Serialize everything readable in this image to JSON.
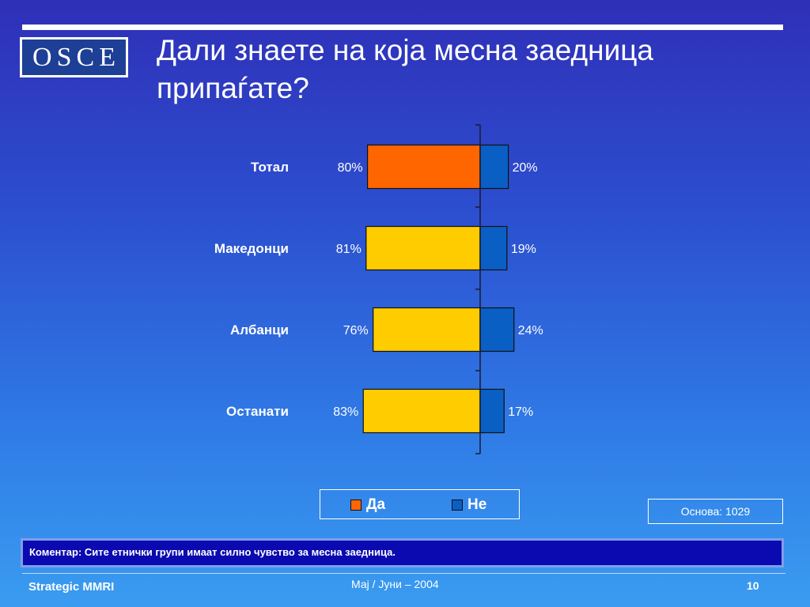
{
  "logo": {
    "letters": [
      "O",
      "S",
      "C",
      "E"
    ]
  },
  "title": "Дали знаете на која месна заедница припаѓате?",
  "chart_data": {
    "type": "bar",
    "orientation": "horizontal",
    "stacked": "diverging",
    "categories": [
      "Тотал",
      "Македонци",
      "Албанци",
      "Останати"
    ],
    "series": [
      {
        "name": "Да",
        "values": [
          80,
          81,
          76,
          83
        ],
        "labels": [
          "80%",
          "81%",
          "76%",
          "83%"
        ],
        "color": "#ffcc00",
        "highlight_color": "#ff6600"
      },
      {
        "name": "Не",
        "values": [
          20,
          19,
          24,
          17
        ],
        "labels": [
          "20%",
          "19%",
          "24%",
          "17%"
        ],
        "color": "#0a5fc4"
      }
    ],
    "highlight_category": "Тотал",
    "legend": "bottom"
  },
  "legend": {
    "items": [
      {
        "label": "Да",
        "color": "#ff6600"
      },
      {
        "label": "Не",
        "color": "#0a5fc4"
      }
    ]
  },
  "base_note": "Основа: 1029",
  "comment": "Коментар: Сите етнички групи имаат силно чувство за месна заедница.",
  "footer": {
    "left": "Strategic MMRI",
    "center": "Мај / Јуни – 2004",
    "page": "10"
  }
}
